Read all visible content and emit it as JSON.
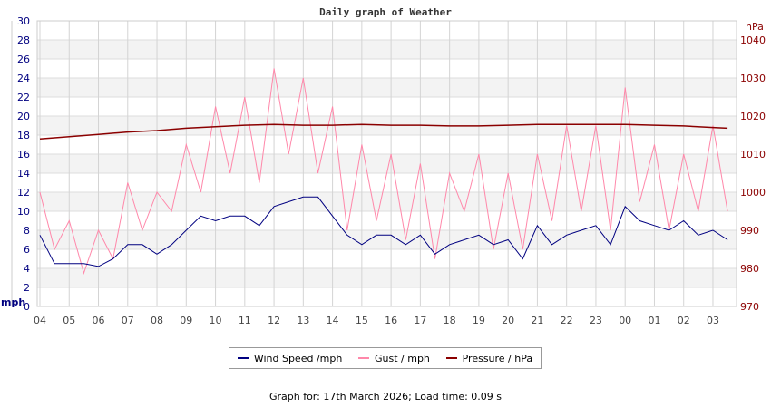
{
  "chart_data": {
    "type": "line",
    "title": "Daily graph of Weather",
    "left_axis": {
      "label": "mph",
      "ylim": [
        0,
        30
      ],
      "ticks": [
        0,
        2,
        4,
        6,
        8,
        10,
        12,
        14,
        16,
        18,
        20,
        22,
        24,
        26,
        28,
        30
      ],
      "color": "#000080"
    },
    "right_axis": {
      "label": "hPa",
      "ylim": [
        970,
        1045
      ],
      "ticks": [
        970,
        980,
        990,
        1000,
        1010,
        1020,
        1030,
        1040
      ],
      "color": "#8b0000"
    },
    "x_ticks": [
      "04",
      "05",
      "06",
      "07",
      "08",
      "09",
      "10",
      "11",
      "12",
      "13",
      "14",
      "15",
      "16",
      "17",
      "18",
      "19",
      "20",
      "21",
      "22",
      "23",
      "00",
      "01",
      "02",
      "03"
    ],
    "grid": true,
    "legend_position": "bottom",
    "x": [
      "04:00",
      "04:30",
      "05:00",
      "05:30",
      "06:00",
      "06:30",
      "07:00",
      "07:30",
      "08:00",
      "08:30",
      "09:00",
      "09:30",
      "10:00",
      "10:30",
      "11:00",
      "11:30",
      "12:00",
      "12:30",
      "13:00",
      "13:30",
      "14:00",
      "14:30",
      "15:00",
      "15:30",
      "16:00",
      "16:30",
      "17:00",
      "17:30",
      "18:00",
      "18:30",
      "19:00",
      "19:30",
      "20:00",
      "20:30",
      "21:00",
      "21:30",
      "22:00",
      "22:30",
      "23:00",
      "23:30",
      "00:00",
      "00:30",
      "01:00",
      "01:30",
      "02:00",
      "02:30",
      "03:00",
      "03:30"
    ],
    "series": [
      {
        "name": "Wind Speed /mph",
        "axis": "left",
        "color": "#000080",
        "values": [
          7.5,
          4.5,
          4.5,
          4.5,
          4.2,
          5,
          6.5,
          6.5,
          5.5,
          6.5,
          8,
          9.5,
          9,
          9.5,
          9.5,
          8.5,
          10.5,
          11,
          11.5,
          11.5,
          9.5,
          7.5,
          6.5,
          7.5,
          7.5,
          6.5,
          7.5,
          5.5,
          6.5,
          7,
          7.5,
          6.5,
          7,
          5,
          8.5,
          6.5,
          7.5,
          8,
          8.5,
          6.5,
          10.5,
          9,
          8.5,
          8,
          9,
          7.5,
          8,
          7
        ]
      },
      {
        "name": "Gust / mph",
        "axis": "left",
        "color": "#ff88aa",
        "values": [
          12,
          6,
          9,
          3.5,
          8,
          5,
          13,
          8,
          12,
          10,
          17,
          12,
          21,
          14,
          22,
          13,
          25,
          16,
          24,
          14,
          21,
          8,
          17,
          9,
          16,
          7,
          15,
          5,
          14,
          10,
          16,
          6,
          14,
          6,
          16,
          9,
          19,
          10,
          19,
          8,
          23,
          11,
          17,
          8,
          16,
          10,
          19,
          10
        ]
      },
      {
        "name": "Pressure / hPa",
        "axis": "right",
        "color": "#8b0000",
        "x": [
          "04:00",
          "05:00",
          "06:00",
          "07:00",
          "08:00",
          "09:00",
          "10:00",
          "11:00",
          "12:00",
          "13:00",
          "14:00",
          "15:00",
          "16:00",
          "17:00",
          "18:00",
          "19:00",
          "20:00",
          "21:00",
          "22:00",
          "23:00",
          "00:00",
          "01:00",
          "02:00",
          "03:00",
          "03:30"
        ],
        "values": [
          1014,
          1014.6,
          1015.2,
          1015.8,
          1016.2,
          1016.8,
          1017.2,
          1017.6,
          1017.8,
          1017.6,
          1017.6,
          1017.8,
          1017.6,
          1017.6,
          1017.4,
          1017.4,
          1017.6,
          1017.8,
          1017.8,
          1017.8,
          1017.8,
          1017.6,
          1017.4,
          1017,
          1016.8
        ]
      }
    ]
  },
  "footer": "Graph for: 17th March 2026; Load time: 0.09 s"
}
